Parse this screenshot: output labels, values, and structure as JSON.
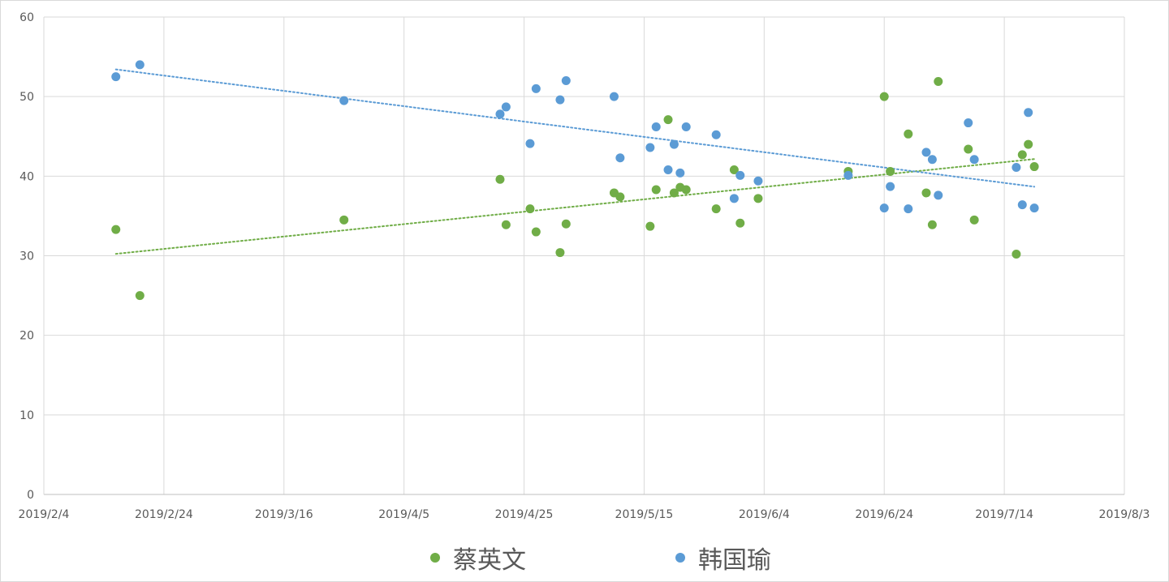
{
  "chart_data": {
    "type": "scatter",
    "title": "",
    "xlabel": "",
    "ylabel": "",
    "x_axis": {
      "type": "date",
      "min": "2019/2/4",
      "max": "2019/8/3",
      "tick_labels": [
        "2019/2/4",
        "2019/2/24",
        "2019/3/16",
        "2019/4/5",
        "2019/4/25",
        "2019/5/15",
        "2019/6/4",
        "2019/6/24",
        "2019/7/14",
        "2019/8/3"
      ]
    },
    "y_axis": {
      "min": 0,
      "max": 60,
      "tick_labels": [
        "0",
        "10",
        "20",
        "30",
        "40",
        "50",
        "60"
      ]
    },
    "grid": true,
    "legend_position": "bottom",
    "series": [
      {
        "name": "蔡英文",
        "color": "#70ad47",
        "trendline": "linear",
        "points": [
          {
            "x": "2019/2/16",
            "y": 33.3
          },
          {
            "x": "2019/2/20",
            "y": 25.0
          },
          {
            "x": "2019/3/26",
            "y": 34.5
          },
          {
            "x": "2019/4/21",
            "y": 39.6
          },
          {
            "x": "2019/4/22",
            "y": 33.9
          },
          {
            "x": "2019/4/26",
            "y": 35.9
          },
          {
            "x": "2019/4/27",
            "y": 33.0
          },
          {
            "x": "2019/5/1",
            "y": 30.4
          },
          {
            "x": "2019/5/2",
            "y": 34.0
          },
          {
            "x": "2019/5/10",
            "y": 37.9
          },
          {
            "x": "2019/5/11",
            "y": 37.4
          },
          {
            "x": "2019/5/16",
            "y": 33.7
          },
          {
            "x": "2019/5/17",
            "y": 38.3
          },
          {
            "x": "2019/5/19",
            "y": 47.1
          },
          {
            "x": "2019/5/20",
            "y": 37.9
          },
          {
            "x": "2019/5/21",
            "y": 38.6
          },
          {
            "x": "2019/5/22",
            "y": 38.3
          },
          {
            "x": "2019/5/27",
            "y": 35.9
          },
          {
            "x": "2019/5/30",
            "y": 40.8
          },
          {
            "x": "2019/5/31",
            "y": 34.1
          },
          {
            "x": "2019/6/3",
            "y": 37.2
          },
          {
            "x": "2019/6/18",
            "y": 40.6
          },
          {
            "x": "2019/6/24",
            "y": 50.0
          },
          {
            "x": "2019/6/25",
            "y": 40.6
          },
          {
            "x": "2019/6/28",
            "y": 45.3
          },
          {
            "x": "2019/7/1",
            "y": 37.9
          },
          {
            "x": "2019/7/2",
            "y": 33.9
          },
          {
            "x": "2019/7/3",
            "y": 51.9
          },
          {
            "x": "2019/7/8",
            "y": 43.4
          },
          {
            "x": "2019/7/9",
            "y": 34.5
          },
          {
            "x": "2019/7/16",
            "y": 30.2
          },
          {
            "x": "2019/7/17",
            "y": 42.7
          },
          {
            "x": "2019/7/18",
            "y": 44.0
          },
          {
            "x": "2019/7/19",
            "y": 41.2
          }
        ]
      },
      {
        "name": "韩国瑜",
        "color": "#5b9bd5",
        "trendline": "linear",
        "points": [
          {
            "x": "2019/2/16",
            "y": 52.5
          },
          {
            "x": "2019/2/20",
            "y": 54.0
          },
          {
            "x": "2019/3/26",
            "y": 49.5
          },
          {
            "x": "2019/4/21",
            "y": 47.8
          },
          {
            "x": "2019/4/22",
            "y": 48.7
          },
          {
            "x": "2019/4/26",
            "y": 44.1
          },
          {
            "x": "2019/4/27",
            "y": 51.0
          },
          {
            "x": "2019/5/1",
            "y": 49.6
          },
          {
            "x": "2019/5/2",
            "y": 52.0
          },
          {
            "x": "2019/5/10",
            "y": 50.0
          },
          {
            "x": "2019/5/11",
            "y": 42.3
          },
          {
            "x": "2019/5/16",
            "y": 43.6
          },
          {
            "x": "2019/5/17",
            "y": 46.2
          },
          {
            "x": "2019/5/19",
            "y": 40.8
          },
          {
            "x": "2019/5/20",
            "y": 44.0
          },
          {
            "x": "2019/5/21",
            "y": 40.4
          },
          {
            "x": "2019/5/22",
            "y": 46.2
          },
          {
            "x": "2019/5/27",
            "y": 45.2
          },
          {
            "x": "2019/5/30",
            "y": 37.2
          },
          {
            "x": "2019/5/31",
            "y": 40.1
          },
          {
            "x": "2019/6/3",
            "y": 39.4
          },
          {
            "x": "2019/6/18",
            "y": 40.1
          },
          {
            "x": "2019/6/24",
            "y": 36.0
          },
          {
            "x": "2019/6/25",
            "y": 38.7
          },
          {
            "x": "2019/6/28",
            "y": 35.9
          },
          {
            "x": "2019/7/1",
            "y": 43.0
          },
          {
            "x": "2019/7/2",
            "y": 42.1
          },
          {
            "x": "2019/7/3",
            "y": 37.6
          },
          {
            "x": "2019/7/8",
            "y": 46.7
          },
          {
            "x": "2019/7/9",
            "y": 42.1
          },
          {
            "x": "2019/7/16",
            "y": 41.1
          },
          {
            "x": "2019/7/17",
            "y": 36.4
          },
          {
            "x": "2019/7/18",
            "y": 48.0
          },
          {
            "x": "2019/7/19",
            "y": 36.0
          }
        ]
      }
    ]
  }
}
